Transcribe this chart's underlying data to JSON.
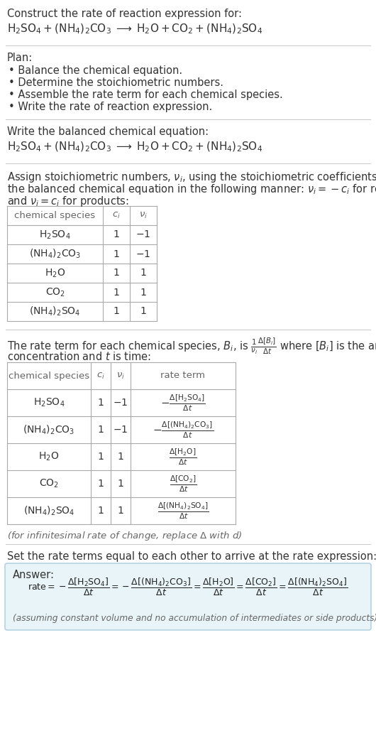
{
  "bg_color": "#ffffff",
  "text_color": "#333333",
  "gray_text": "#666666",
  "title_line1": "Construct the rate of reaction expression for:",
  "plan_items": [
    "• Balance the chemical equation.",
    "• Determine the stoichiometric numbers.",
    "• Assemble the rate term for each chemical species.",
    "• Write the rate of reaction expression."
  ],
  "table1_species": [
    "$\\mathrm{H_2SO_4}$",
    "$\\mathrm{(NH_4)_2CO_3}$",
    "$\\mathrm{H_2O}$",
    "$\\mathrm{CO_2}$",
    "$\\mathrm{(NH_4)_2SO_4}$"
  ],
  "table1_ci": [
    "1",
    "1",
    "1",
    "1",
    "1"
  ],
  "table1_ni": [
    "$-1$",
    "$-1$",
    "$1$",
    "$1$",
    "$1$"
  ],
  "table2_species": [
    "$\\mathrm{H_2SO_4}$",
    "$\\mathrm{(NH_4)_2CO_3}$",
    "$\\mathrm{H_2O}$",
    "$\\mathrm{CO_2}$",
    "$\\mathrm{(NH_4)_2SO_4}$"
  ],
  "table2_ci": [
    "1",
    "1",
    "1",
    "1",
    "1"
  ],
  "table2_ni": [
    "$-1$",
    "$-1$",
    "$1$",
    "$1$",
    "$1$"
  ],
  "answer_box_color": "#e8f4f8",
  "answer_box_edge": "#aaccdd"
}
